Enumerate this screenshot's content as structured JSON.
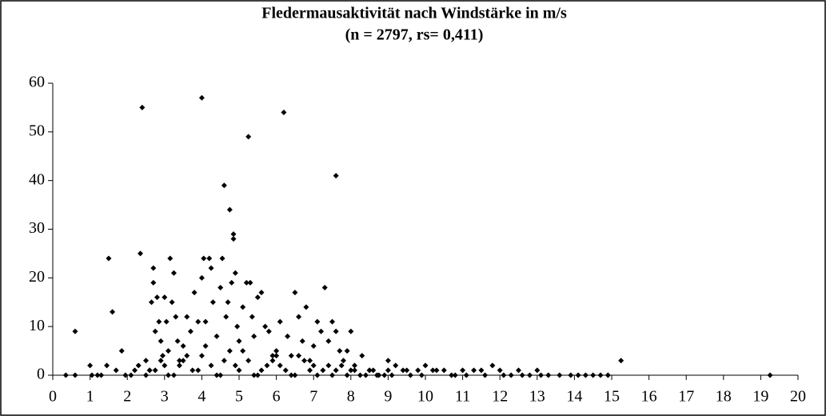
{
  "chart_data": {
    "type": "scatter",
    "title": "Fledermausaktivität nach Windstärke in m/s",
    "subtitle": "(n = 2797, rs= 0,411)",
    "color": "#000000",
    "xlim": [
      0,
      20
    ],
    "xticks": [
      0,
      1,
      2,
      3,
      4,
      5,
      6,
      7,
      8,
      9,
      10,
      11,
      12,
      13,
      14,
      15,
      16,
      17,
      18,
      19,
      20
    ],
    "ylim": [
      0,
      60
    ],
    "yticks": [
      0,
      10,
      20,
      30,
      40,
      50,
      60
    ],
    "grid": false,
    "series": [
      {
        "name": null,
        "color": "#000000",
        "x": [
          0.35,
          0.6,
          0.6,
          1.0,
          1.05,
          1.2,
          1.3,
          1.45,
          1.5,
          1.6,
          1.7,
          1.85,
          1.95,
          2.1,
          2.2,
          2.3,
          2.35,
          2.4,
          2.5,
          2.6,
          2.65,
          2.7,
          2.7,
          2.75,
          2.8,
          2.85,
          2.9,
          2.95,
          3.0,
          3.05,
          3.1,
          3.15,
          3.2,
          3.25,
          3.3,
          3.35,
          3.4,
          3.5,
          3.6,
          3.7,
          3.8,
          3.9,
          4.0,
          4.0,
          4.05,
          4.1,
          4.2,
          4.25,
          4.3,
          4.4,
          4.5,
          4.55,
          4.6,
          4.65,
          4.7,
          4.75,
          4.8,
          4.85,
          4.85,
          4.9,
          4.95,
          5.0,
          5.1,
          5.2,
          5.25,
          5.3,
          5.35,
          5.4,
          5.5,
          5.6,
          5.7,
          5.8,
          5.9,
          6.0,
          6.1,
          6.2,
          6.3,
          6.4,
          6.5,
          6.6,
          6.7,
          6.8,
          6.9,
          7.0,
          7.1,
          7.2,
          7.3,
          7.4,
          7.5,
          7.6,
          7.6,
          7.7,
          7.8,
          7.9,
          8.0,
          8.1,
          8.3,
          8.5,
          8.7,
          9.0,
          9.2,
          9.4,
          9.6,
          9.8,
          10.0,
          10.2,
          10.5,
          10.8,
          11.0,
          11.3,
          11.6,
          11.8,
          12.0,
          12.3,
          12.5,
          12.8,
          13.0,
          13.3,
          13.6,
          13.9,
          14.1,
          14.3,
          14.5,
          14.7,
          14.9,
          15.25,
          19.25,
          2.5,
          2.75,
          3.0,
          3.25,
          3.5,
          3.75,
          4.0,
          4.25,
          4.5,
          4.75,
          5.0,
          5.25,
          5.5,
          5.75,
          6.0,
          6.25,
          6.5,
          6.75,
          7.0,
          7.25,
          7.5,
          7.75,
          8.0,
          8.25,
          8.5,
          8.75,
          9.0,
          2.6,
          2.9,
          3.1,
          3.4,
          3.6,
          3.9,
          4.1,
          4.4,
          4.6,
          4.9,
          5.1,
          5.4,
          5.6,
          5.9,
          6.1,
          6.4,
          6.6,
          6.9,
          7.1,
          7.4,
          7.6,
          7.9,
          8.1,
          8.4,
          8.6,
          8.9,
          9.1,
          9.5,
          9.9,
          10.3,
          10.7,
          11.1,
          11.5,
          12.1,
          12.6,
          13.1
        ],
        "values": [
          0,
          0,
          9,
          2,
          0,
          0,
          0,
          2,
          24,
          13,
          1,
          5,
          0,
          0,
          1,
          2,
          25,
          55,
          3,
          1,
          15,
          22,
          19,
          9,
          16,
          11,
          7,
          4,
          16,
          11,
          5,
          24,
          15,
          21,
          12,
          7,
          3,
          6,
          12,
          9,
          17,
          11,
          57,
          20,
          24,
          11,
          24,
          22,
          15,
          8,
          18,
          24,
          39,
          12,
          15,
          34,
          19,
          29,
          28,
          21,
          10,
          7,
          14,
          19,
          49,
          19,
          12,
          8,
          16,
          17,
          10,
          9,
          4,
          5,
          11,
          54,
          8,
          4,
          17,
          12,
          7,
          14,
          3,
          6,
          11,
          9,
          18,
          7,
          11,
          41,
          9,
          5,
          3,
          5,
          9,
          1,
          4,
          1,
          0,
          3,
          2,
          1,
          0,
          1,
          2,
          1,
          1,
          0,
          1,
          1,
          0,
          2,
          1,
          0,
          1,
          0,
          1,
          0,
          0,
          0,
          0,
          0,
          0,
          0,
          0,
          3,
          0,
          0,
          1,
          2,
          0,
          3,
          1,
          4,
          2,
          0,
          5,
          1,
          3,
          0,
          2,
          4,
          1,
          0,
          3,
          2,
          1,
          0,
          2,
          1,
          0,
          1,
          0,
          1,
          1,
          3,
          0,
          2,
          4,
          1,
          6,
          0,
          3,
          2,
          5,
          0,
          1,
          3,
          2,
          0,
          4,
          1,
          0,
          2,
          1,
          0,
          2,
          0,
          1,
          0,
          0,
          1,
          0,
          1,
          0,
          0,
          1,
          0,
          0,
          0
        ]
      }
    ]
  }
}
